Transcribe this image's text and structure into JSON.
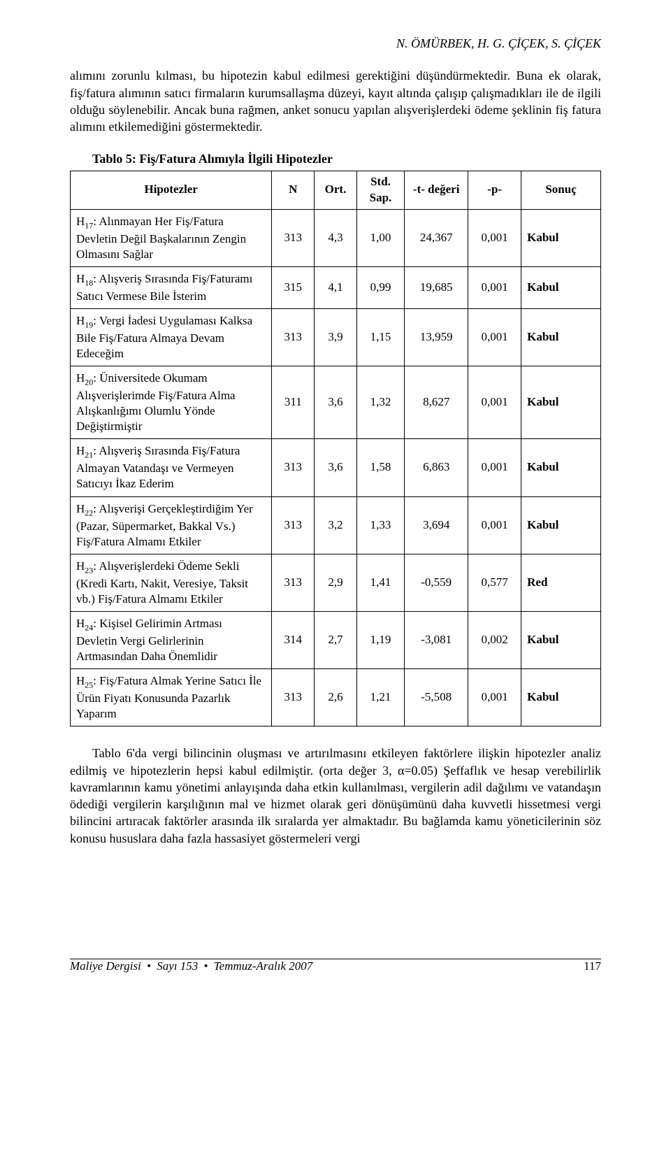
{
  "header": {
    "authors": "N. ÖMÜRBEK, H. G. ÇİÇEK, S. ÇİÇEK"
  },
  "paragraph1": "alımını zorunlu kılması, bu hipotezin kabul edilmesi gerektiğini düşündürmektedir. Buna ek olarak, fiş/fatura alımının satıcı firmaların kurumsallaşma düzeyi, kayıt altında çalışıp çalışmadıkları ile de ilgili olduğu söylenebilir. Ancak buna rağmen, anket sonucu yapılan alışverişlerdeki ödeme şeklinin fiş fatura alımını etkilemediğini göstermektedir.",
  "table": {
    "title": "Tablo 5: Fiş/Fatura Alımıyla İlgili Hipotezler",
    "columns": [
      "Hipotezler",
      "N",
      "Ort.",
      "Std. Sap.",
      "-t- değeri",
      "-p-",
      "Sonuç"
    ],
    "rows": [
      {
        "id": "17",
        "desc": ": Alınmayan Her Fiş/Fatura Devletin Değil Başkalarının Zengin Olmasını Sağlar",
        "n": "313",
        "ort": "4,3",
        "std": "1,00",
        "t": "24,367",
        "p": "0,001",
        "sonuc": "Kabul"
      },
      {
        "id": "18",
        "desc": ": Alışveriş Sırasında Fiş/Faturamı Satıcı Vermese Bile İsterim",
        "n": "315",
        "ort": "4,1",
        "std": "0,99",
        "t": "19,685",
        "p": "0,001",
        "sonuc": "Kabul"
      },
      {
        "id": "19",
        "desc": ": Vergi İadesi Uygulaması Kalksa Bile Fiş/Fatura Almaya Devam Edeceğim",
        "n": "313",
        "ort": "3,9",
        "std": "1,15",
        "t": "13,959",
        "p": "0,001",
        "sonuc": "Kabul"
      },
      {
        "id": "20",
        "desc": ": Üniversitede Okumam Alışverişlerimde Fiş/Fatura Alma Alışkanlığımı Olumlu Yönde Değiştirmiştir",
        "n": "311",
        "ort": "3,6",
        "std": "1,32",
        "t": "8,627",
        "p": "0,001",
        "sonuc": "Kabul"
      },
      {
        "id": "21",
        "desc": ": Alışveriş Sırasında Fiş/Fatura Almayan Vatandaşı ve Vermeyen Satıcıyı İkaz Ederim",
        "n": "313",
        "ort": "3,6",
        "std": "1,58",
        "t": "6,863",
        "p": "0,001",
        "sonuc": "Kabul"
      },
      {
        "id": "22",
        "desc": ": Alışverişi Gerçekleştirdiğim Yer (Pazar, Süpermarket, Bakkal Vs.) Fiş/Fatura Almamı Etkiler",
        "n": "313",
        "ort": "3,2",
        "std": "1,33",
        "t": "3,694",
        "p": "0,001",
        "sonuc": "Kabul"
      },
      {
        "id": "23",
        "desc": ": Alışverişlerdeki Ödeme Sekli (Kredi Kartı, Nakit, Veresiye, Taksit vb.) Fiş/Fatura Almamı Etkiler",
        "n": "313",
        "ort": "2,9",
        "std": "1,41",
        "t": "-0,559",
        "p": "0,577",
        "sonuc": "Red"
      },
      {
        "id": "24",
        "desc": ": Kişisel Gelirimin Artması Devletin Vergi Gelirlerinin Artmasından Daha Önemlidir",
        "n": "314",
        "ort": "2,7",
        "std": "1,19",
        "t": "-3,081",
        "p": "0,002",
        "sonuc": "Kabul"
      },
      {
        "id": "25",
        "desc": ": Fiş/Fatura Almak Yerine Satıcı İle Ürün Fiyatı Konusunda Pazarlık Yaparım",
        "n": "313",
        "ort": "2,6",
        "std": "1,21",
        "t": "-5,508",
        "p": "0,001",
        "sonuc": "Kabul"
      }
    ],
    "col_widths": [
      "38%",
      "8%",
      "8%",
      "9%",
      "12%",
      "10%",
      "15%"
    ]
  },
  "paragraph2": "Tablo 6'da vergi bilincinin oluşması ve artırılmasını etkileyen faktörlere ilişkin hipotezler analiz edilmiş ve hipotezlerin hepsi kabul edilmiştir. (orta değer 3, α=0.05) Şeffaflık ve hesap verebilirlik kavramlarının kamu yönetimi anlayışında daha etkin kullanılması, vergilerin adil dağılımı ve vatandaşın ödediği vergilerin karşılığının mal ve hizmet olarak geri dönüşümünü daha kuvvetli hissetmesi vergi bilincini artıracak faktörler arasında ilk sıralarda yer almaktadır. Bu bağlamda kamu yöneticilerinin söz konusu hususlara daha fazla hassasiyet göstermeleri vergi",
  "footer": {
    "journal": "Maliye Dergisi",
    "issue": "Sayı 153",
    "date": "Temmuz-Aralık 2007",
    "page": "117"
  }
}
